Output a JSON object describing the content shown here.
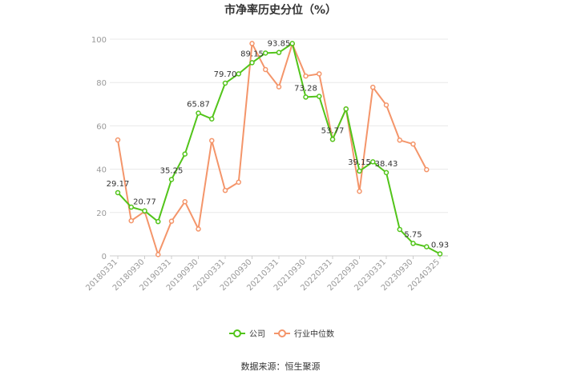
{
  "chart_data": {
    "type": "line",
    "title": "市净率历史分位（%）",
    "x_tick_labels": [
      "20180331",
      "20180930",
      "20190331",
      "20190930",
      "20200331",
      "20200930",
      "20210331",
      "20210930",
      "20220331",
      "20220930",
      "20230331",
      "20230930",
      "20240325"
    ],
    "x": [
      "20180331",
      "20180630",
      "20180930",
      "20181231",
      "20190331",
      "20190630",
      "20190930",
      "20191231",
      "20200331",
      "20200630",
      "20200930",
      "20201231",
      "20210331",
      "20210630",
      "20210930",
      "20211231",
      "20220331",
      "20220630",
      "20220930",
      "20221231",
      "20230331",
      "20230630",
      "20230930",
      "20231231",
      "20240325"
    ],
    "series": [
      {
        "name": "公司",
        "color": "#52c41a",
        "values": [
          29.17,
          22.5,
          20.77,
          15.8,
          35.25,
          47,
          65.87,
          63.2,
          79.7,
          84,
          89.15,
          93.6,
          93.85,
          98,
          73.28,
          73.6,
          53.77,
          67.8,
          39.15,
          43.4,
          38.43,
          12.2,
          5.75,
          4.2,
          0.93
        ]
      },
      {
        "name": "行业中位数",
        "color": "#f4956a",
        "values": [
          53.5,
          16.2,
          20.5,
          0.6,
          16,
          25,
          12.4,
          53.2,
          30.2,
          34,
          98,
          86,
          78,
          97.8,
          83,
          84,
          53.8,
          67.8,
          29.8,
          77.8,
          69.6,
          53.4,
          51.6,
          39.8,
          null
        ]
      }
    ],
    "data_labels": [
      {
        "index": 0,
        "text": "29.17"
      },
      {
        "index": 2,
        "text": "20.77"
      },
      {
        "index": 4,
        "text": "35.25"
      },
      {
        "index": 6,
        "text": "65.87"
      },
      {
        "index": 8,
        "text": "79.70"
      },
      {
        "index": 10,
        "text": "89.15"
      },
      {
        "index": 12,
        "text": "93.85"
      },
      {
        "index": 14,
        "text": "73.28"
      },
      {
        "index": 16,
        "text": "53.77"
      },
      {
        "index": 18,
        "text": "39.15"
      },
      {
        "index": 20,
        "text": "38.43"
      },
      {
        "index": 22,
        "text": "5.75"
      },
      {
        "index": 24,
        "text": "0.93"
      }
    ],
    "ylim": [
      0,
      100
    ],
    "yticks": [
      0,
      20,
      40,
      60,
      80,
      100
    ],
    "grid": true,
    "legend_position": "bottom",
    "source": "数据来源：恒生聚源"
  }
}
